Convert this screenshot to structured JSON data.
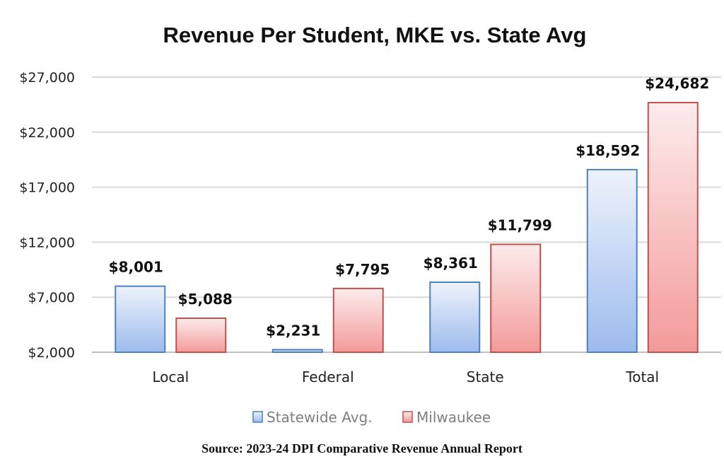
{
  "chart_data": {
    "type": "bar",
    "title": "Revenue Per Student, MKE vs. State Avg",
    "categories": [
      "Local",
      "Federal",
      "State",
      "Total"
    ],
    "series": [
      {
        "name": "Statewide Avg.",
        "values": [
          8001,
          2231,
          8361,
          18592
        ],
        "labels": [
          "$8,001",
          "$2,231",
          "$8,361",
          "$18,592"
        ],
        "color": "#4f81bd"
      },
      {
        "name": "Milwaukee",
        "values": [
          5088,
          7795,
          11799,
          24682
        ],
        "labels": [
          "$5,088",
          "$7,795",
          "$11,799",
          "$24,682"
        ],
        "color": "#c0504d"
      }
    ],
    "yticks": [
      2000,
      7000,
      12000,
      17000,
      22000,
      27000
    ],
    "ytick_labels": [
      "$2,000",
      "$7,000",
      "$12,000",
      "$17,000",
      "$22,000",
      "$27,000"
    ],
    "ylim": [
      2000,
      27000
    ],
    "xlabel": "",
    "ylabel": "",
    "grid": true,
    "legend": "bottom-center"
  },
  "source": "Source: 2023-24 DPI Comparative Revenue Annual Report"
}
